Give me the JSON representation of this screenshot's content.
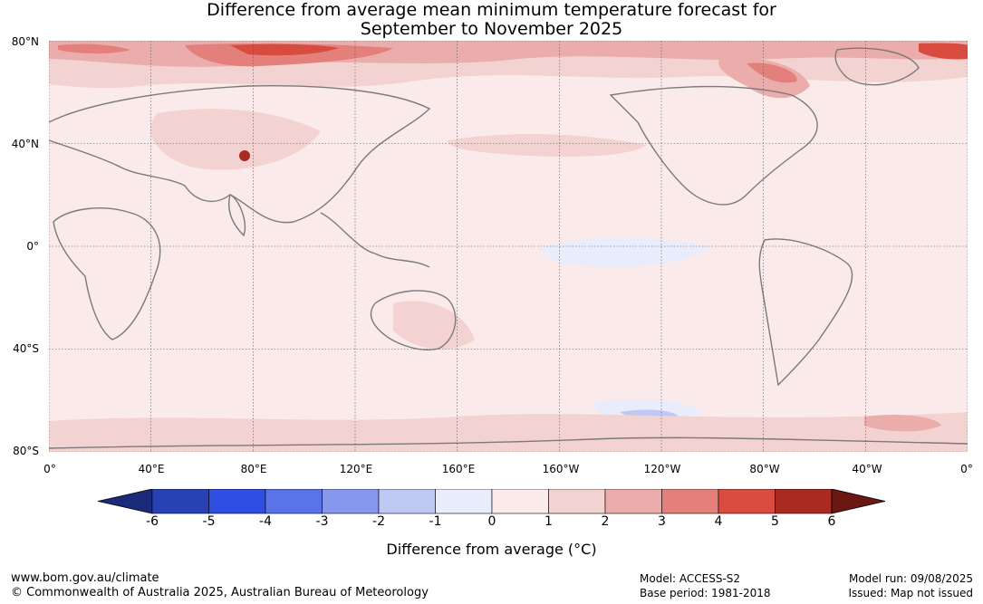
{
  "title_line1": "Difference from average mean minimum temperature forecast for",
  "title_line2": "September to November 2025",
  "lat_labels": [
    "80°N",
    "40°N",
    "0°",
    "40°S",
    "80°S"
  ],
  "lon_labels": [
    "0°",
    "40°E",
    "80°E",
    "120°E",
    "160°E",
    "160°W",
    "120°W",
    "80°W",
    "40°W",
    "0°"
  ],
  "colorbar": {
    "ticks": [
      "-6",
      "-5",
      "-4",
      "-3",
      "-2",
      "-1",
      "0",
      "1",
      "2",
      "3",
      "4",
      "5",
      "6"
    ],
    "colors": [
      "#1b2a7a",
      "#2841b4",
      "#2f4fe3",
      "#5a73e8",
      "#8797ec",
      "#bfc7f3",
      "#e9ecfb",
      "#fbeaea",
      "#f3d3d2",
      "#ebadab",
      "#e4807b",
      "#d84b3f",
      "#a92a21",
      "#6b1712"
    ],
    "label": "Difference from average (°C)"
  },
  "footer": {
    "url": "www.bom.gov.au/climate",
    "copyright": "© Commonwealth of Australia 2025, Australian Bureau of Meteorology",
    "model": "Model: ACCESS-S2",
    "base_period": "Base period: 1981-2018",
    "model_run": "Model run: 09/08/2025",
    "issued": "Issued: Map not issued"
  }
}
